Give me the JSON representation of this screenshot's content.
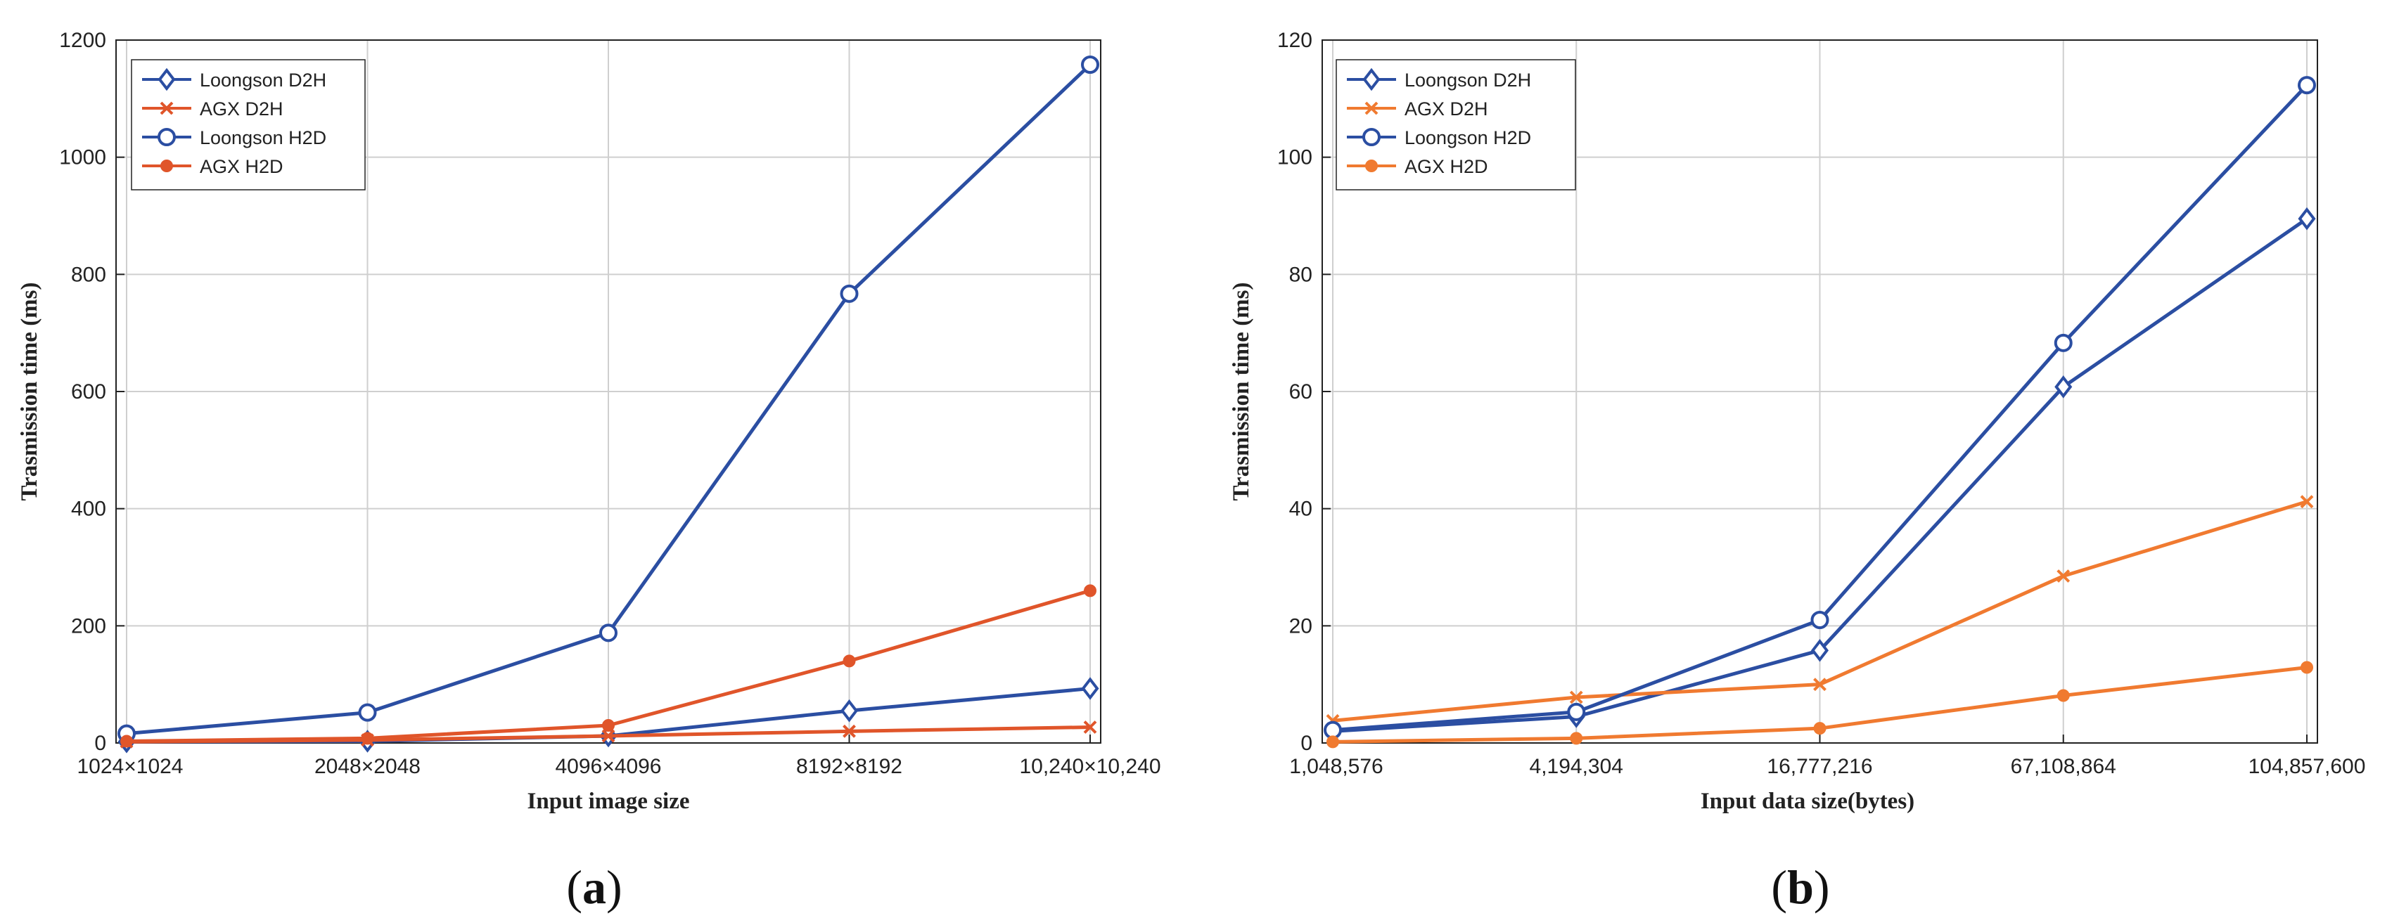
{
  "colors": {
    "blue": "#2b4ea2",
    "red": "#e0552a",
    "orange": "#f07a30",
    "grid": "#cfcfcf",
    "axis": "#222222"
  },
  "chart_data": [
    {
      "type": "line",
      "panel_label_open": "(",
      "panel_label_letter": "a",
      "panel_label_close": ")",
      "xlabel": "Input image size",
      "ylabel": "Trasmission time (ms)",
      "categories": [
        "1024×1024",
        "2048×2048",
        "4096×4096",
        "8192×8192",
        "10,240×10,240"
      ],
      "ylim": [
        0,
        1200
      ],
      "yticks": [
        "0",
        "200",
        "400",
        "600",
        "800",
        "1000",
        "1200"
      ],
      "yticks_values": [
        0,
        200,
        400,
        600,
        800,
        1000,
        1200
      ],
      "grid": true,
      "legend_position": "top-left",
      "series": [
        {
          "name": "Loongson D2H",
          "color": "#2b4ea2",
          "marker": "diamond",
          "values": [
            2,
            3,
            12,
            55,
            93
          ]
        },
        {
          "name": "AGX D2H",
          "color": "#e0552a",
          "marker": "x",
          "values": [
            2,
            5,
            12,
            20,
            27
          ]
        },
        {
          "name": "Loongson H2D",
          "color": "#2b4ea2",
          "marker": "circle",
          "values": [
            16,
            52,
            188,
            767,
            1158
          ]
        },
        {
          "name": "AGX H2D",
          "color": "#e0552a",
          "marker": "dot",
          "values": [
            3,
            8,
            30,
            140,
            260
          ]
        }
      ]
    },
    {
      "type": "line",
      "panel_label_open": "(",
      "panel_label_letter": "b",
      "panel_label_close": ")",
      "xlabel": "Input data size(bytes)",
      "ylabel": "Trasmission time (ms)",
      "categories": [
        "1,048,576",
        "4,194,304",
        "16,777,216",
        "67,108,864",
        "104,857,600"
      ],
      "ylim": [
        0,
        120
      ],
      "yticks": [
        "0",
        "20",
        "40",
        "60",
        "80",
        "100",
        "120"
      ],
      "yticks_values": [
        0,
        20,
        40,
        60,
        80,
        100,
        120
      ],
      "grid": true,
      "legend_position": "top-left",
      "series": [
        {
          "name": "Loongson  D2H",
          "color": "#2b4ea2",
          "marker": "diamond",
          "values": [
            2,
            4.5,
            15.8,
            60.8,
            89.5
          ]
        },
        {
          "name": "AGX D2H",
          "color": "#f07a30",
          "marker": "x",
          "values": [
            3.8,
            7.8,
            10,
            28.5,
            41.2
          ]
        },
        {
          "name": "Loongson H2D",
          "color": "#2b4ea2",
          "marker": "circle",
          "values": [
            2.2,
            5.3,
            21,
            68.3,
            112.3
          ]
        },
        {
          "name": "AGX H2D",
          "color": "#f07a30",
          "marker": "dot",
          "values": [
            0.2,
            0.8,
            2.5,
            8.1,
            12.9
          ]
        }
      ]
    }
  ]
}
